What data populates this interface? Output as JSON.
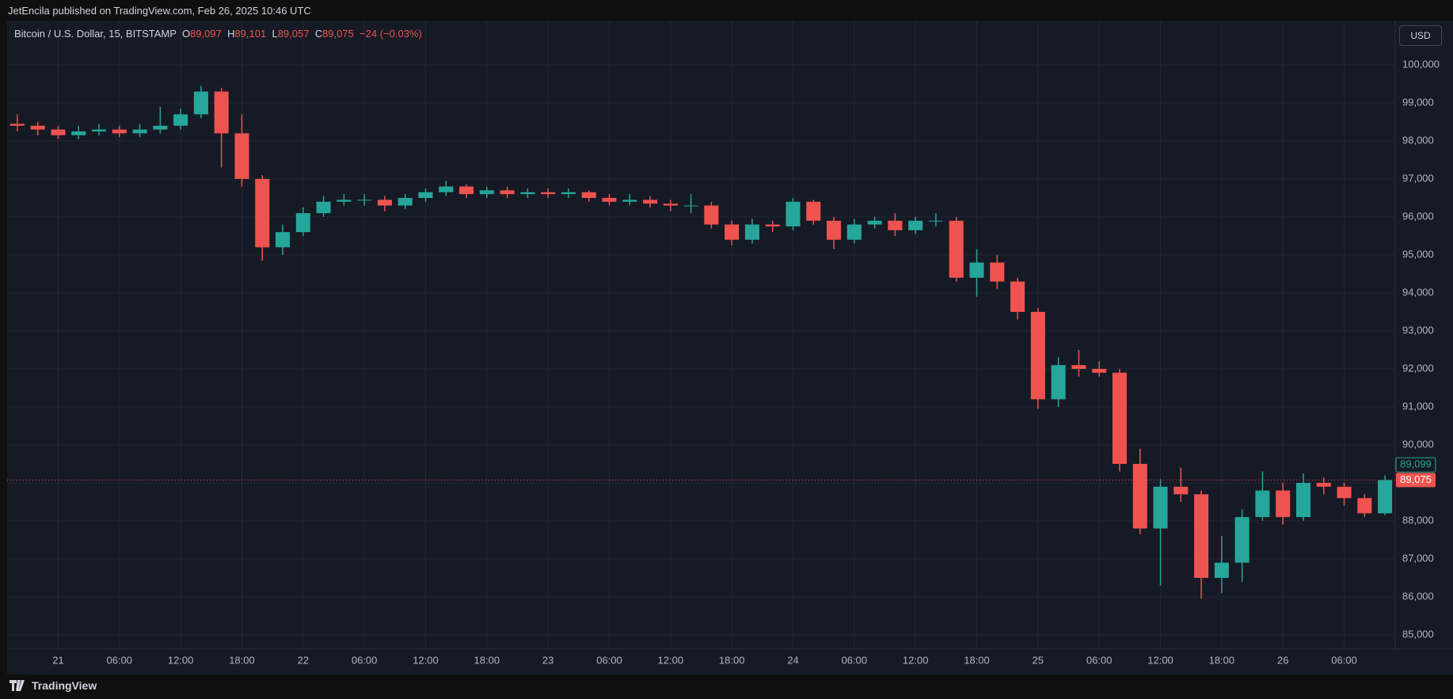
{
  "header": "JetEncila published on TradingView.com, Feb 26, 2025 10:46 UTC",
  "footer": "TradingView",
  "currency_button": "USD",
  "chart_data": {
    "type": "candlestick",
    "symbol": "Bitcoin / U.S. Dollar, 15, BITSTAMP",
    "ohlc": [
      {
        "key": "O",
        "value": "89,097"
      },
      {
        "key": "H",
        "value": "89,101"
      },
      {
        "key": "L",
        "value": "89,057"
      },
      {
        "key": "C",
        "value": "89,075"
      }
    ],
    "change": "−24 (−0.03%)",
    "up_color": "#26a69a",
    "down_color": "#ef5350",
    "grid": true,
    "xlim": [
      -5,
      131
    ],
    "xticks": [
      {
        "value": 0,
        "label": "21"
      },
      {
        "value": 6,
        "label": "06:00"
      },
      {
        "value": 12,
        "label": "12:00"
      },
      {
        "value": 18,
        "label": "18:00"
      },
      {
        "value": 24,
        "label": "22"
      },
      {
        "value": 30,
        "label": "06:00"
      },
      {
        "value": 36,
        "label": "12:00"
      },
      {
        "value": 42,
        "label": "18:00"
      },
      {
        "value": 48,
        "label": "23"
      },
      {
        "value": 54,
        "label": "06:00"
      },
      {
        "value": 60,
        "label": "12:00"
      },
      {
        "value": 66,
        "label": "18:00"
      },
      {
        "value": 72,
        "label": "24"
      },
      {
        "value": 78,
        "label": "06:00"
      },
      {
        "value": 84,
        "label": "12:00"
      },
      {
        "value": 90,
        "label": "18:00"
      },
      {
        "value": 96,
        "label": "25"
      },
      {
        "value": 102,
        "label": "06:00"
      },
      {
        "value": 108,
        "label": "12:00"
      },
      {
        "value": 114,
        "label": "18:00"
      },
      {
        "value": 120,
        "label": "26"
      },
      {
        "value": 126,
        "label": "06:00"
      }
    ],
    "ylim": [
      84625,
      101167
    ],
    "yticks": [
      {
        "value": 85000,
        "label": "85,000"
      },
      {
        "value": 86000,
        "label": "86,000"
      },
      {
        "value": 87000,
        "label": "87,000"
      },
      {
        "value": 88000,
        "label": "88,000"
      },
      {
        "value": 89000,
        "label": "89,000"
      },
      {
        "value": 90000,
        "label": "90,000"
      },
      {
        "value": 91000,
        "label": "91,000"
      },
      {
        "value": 92000,
        "label": "92,000"
      },
      {
        "value": 93000,
        "label": "93,000"
      },
      {
        "value": 94000,
        "label": "94,000"
      },
      {
        "value": 95000,
        "label": "95,000"
      },
      {
        "value": 96000,
        "label": "96,000"
      },
      {
        "value": 97000,
        "label": "97,000"
      },
      {
        "value": 98000,
        "label": "98,000"
      },
      {
        "value": 99000,
        "label": "99,000"
      },
      {
        "value": 100000,
        "label": "100,000"
      }
    ],
    "last_price": {
      "value": 89075,
      "label": "89,075"
    },
    "prev_price": {
      "value": 89099,
      "label": "89,099"
    },
    "x": [
      -4,
      -2,
      0,
      2,
      4,
      6,
      8,
      10,
      12,
      14,
      16,
      18,
      20,
      22,
      24,
      26,
      28,
      30,
      32,
      34,
      36,
      38,
      40,
      42,
      44,
      46,
      48,
      50,
      52,
      54,
      56,
      58,
      60,
      62,
      64,
      66,
      68,
      70,
      72,
      74,
      76,
      78,
      80,
      82,
      84,
      86,
      88,
      90,
      92,
      94,
      96,
      98,
      100,
      102,
      104,
      106,
      108,
      110,
      112,
      114,
      116,
      118,
      120,
      122,
      124,
      126,
      128,
      130
    ],
    "open": [
      98450,
      98400,
      98300,
      98150,
      98250,
      98300,
      98200,
      98300,
      98400,
      98700,
      99300,
      98200,
      97000,
      95200,
      95600,
      96100,
      96400,
      96450,
      96450,
      96300,
      96500,
      96650,
      96800,
      96600,
      96700,
      96600,
      96650,
      96600,
      96650,
      96500,
      96400,
      96450,
      96350,
      96300,
      96300,
      95800,
      95400,
      95800,
      95750,
      96400,
      95900,
      95400,
      95800,
      95900,
      95650,
      95900,
      95900,
      94400,
      94800,
      94300,
      93500,
      91200,
      92100,
      92000,
      91900,
      89500,
      87800,
      88900,
      88700,
      86500,
      86900,
      88100,
      88800,
      88100,
      89000,
      88900,
      88600,
      88200
    ],
    "high": [
      98700,
      98500,
      98400,
      98400,
      98450,
      98400,
      98450,
      98900,
      98850,
      99450,
      99400,
      98700,
      97100,
      95800,
      96250,
      96550,
      96600,
      96600,
      96550,
      96600,
      96750,
      96950,
      96850,
      96800,
      96800,
      96750,
      96750,
      96750,
      96700,
      96600,
      96600,
      96550,
      96450,
      96600,
      96400,
      95900,
      95950,
      95900,
      96500,
      96450,
      96000,
      95950,
      96000,
      96100,
      96000,
      96100,
      96000,
      95150,
      95000,
      94400,
      93600,
      92300,
      92500,
      92200,
      92000,
      89900,
      89100,
      89400,
      88800,
      87600,
      88300,
      89300,
      89000,
      89250,
      89150,
      89000,
      88700,
      89200
    ],
    "low": [
      98250,
      98150,
      98050,
      98050,
      98150,
      98100,
      98100,
      98200,
      98300,
      98600,
      97300,
      96800,
      94850,
      95000,
      95500,
      96000,
      96300,
      96300,
      96150,
      96200,
      96400,
      96550,
      96500,
      96500,
      96500,
      96500,
      96500,
      96500,
      96400,
      96300,
      96300,
      96250,
      96150,
      96100,
      95700,
      95250,
      95300,
      95600,
      95650,
      95800,
      95150,
      95300,
      95700,
      95500,
      95550,
      95750,
      94300,
      93900,
      94100,
      93300,
      90950,
      91000,
      91800,
      91800,
      89300,
      87650,
      86300,
      88500,
      85950,
      86100,
      86400,
      88000,
      87900,
      88000,
      88700,
      88400,
      88100,
      88150
    ],
    "close": [
      98400,
      98300,
      98150,
      98250,
      98300,
      98200,
      98300,
      98400,
      98700,
      99300,
      98200,
      97000,
      95200,
      95600,
      96100,
      96400,
      96450,
      96450,
      96300,
      96500,
      96650,
      96800,
      96600,
      96700,
      96600,
      96650,
      96600,
      96650,
      96500,
      96400,
      96450,
      96350,
      96300,
      96300,
      95800,
      95400,
      95800,
      95750,
      96400,
      95900,
      95400,
      95800,
      95900,
      95650,
      95900,
      95900,
      94400,
      94800,
      94300,
      93500,
      91200,
      92100,
      92000,
      91900,
      89500,
      87800,
      88900,
      88700,
      86500,
      86900,
      88100,
      88800,
      88100,
      89000,
      88900,
      88600,
      88200,
      89075
    ]
  }
}
